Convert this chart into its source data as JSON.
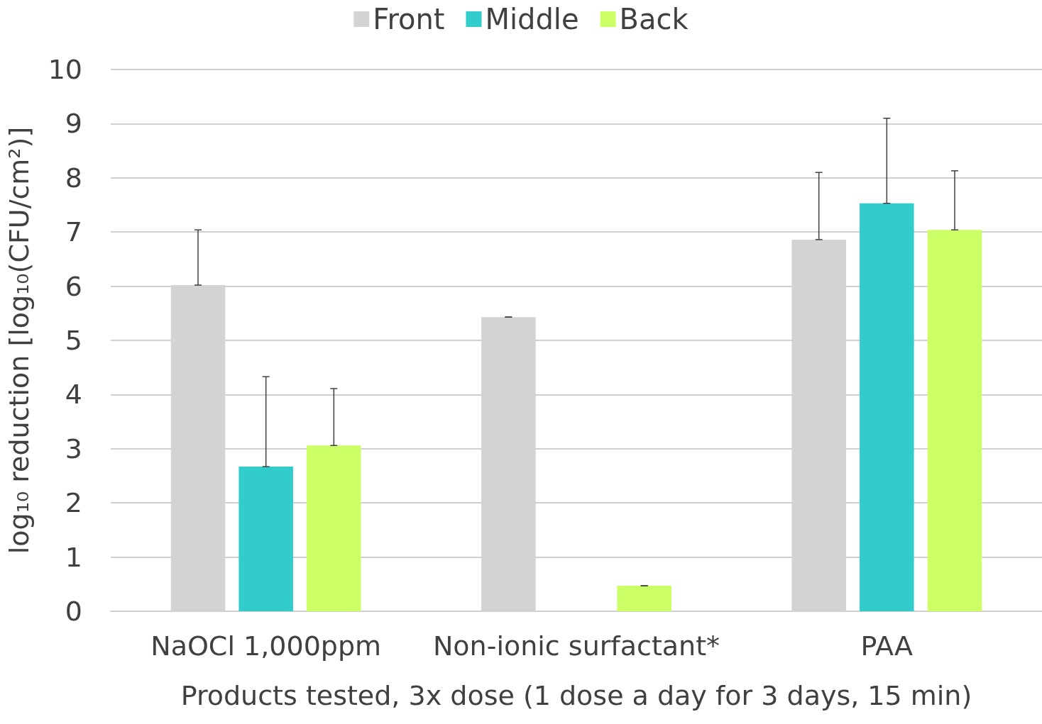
{
  "chart_data": {
    "type": "bar",
    "xlabel": "Products tested, 3x dose (1 dose a day for 3 days, 15 min)",
    "ylabel": "log₁₀ reduction [log₁₀(CFU/cm²)]",
    "categories": [
      "NaOCl 1,000ppm",
      "Non-ionic surfactant*",
      "PAA"
    ],
    "series": [
      {
        "name": "Front",
        "color": "#d3d3d3",
        "values": [
          6.02,
          5.43,
          6.86
        ],
        "errors": [
          [
            6.02,
            7.04
          ],
          [
            5.43,
            5.43
          ],
          [
            6.86,
            8.1
          ]
        ]
      },
      {
        "name": "Middle",
        "color": "#33cccc",
        "values": [
          2.67,
          null,
          7.53
        ],
        "errors": [
          [
            2.67,
            4.33
          ],
          null,
          [
            7.53,
            9.1
          ]
        ]
      },
      {
        "name": "Back",
        "color": "#ccff66",
        "values": [
          3.06,
          0.47,
          7.04
        ],
        "errors": [
          [
            3.06,
            4.11
          ],
          [
            0.47,
            0.47
          ],
          [
            7.04,
            8.13
          ]
        ]
      }
    ],
    "ylim": [
      0,
      10
    ],
    "yticks": [
      0,
      1,
      2,
      3,
      4,
      5,
      6,
      7,
      8,
      9,
      10
    ],
    "grid": "y",
    "legend": "top"
  }
}
